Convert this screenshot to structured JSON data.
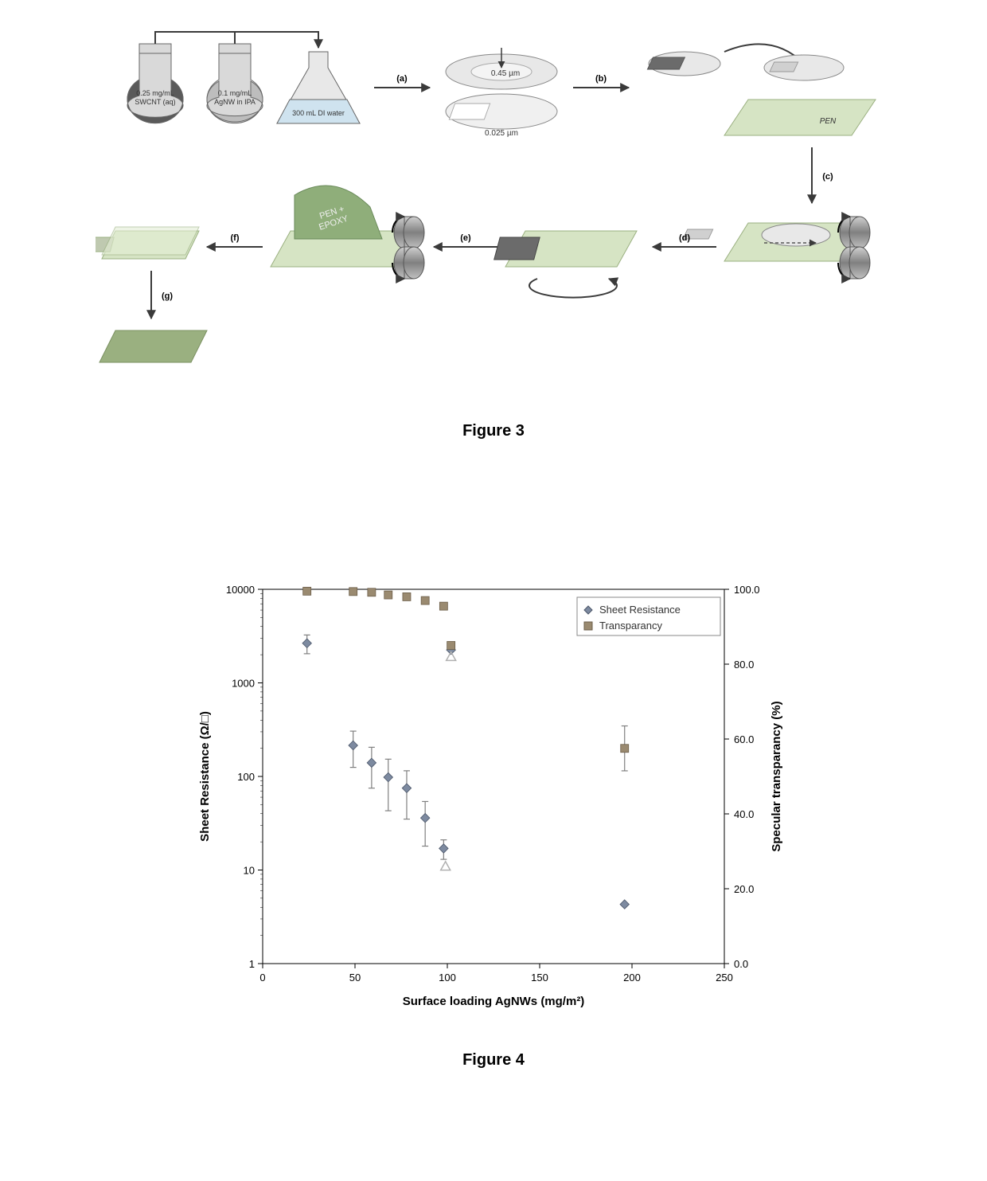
{
  "figure3": {
    "caption": "Figure 3",
    "flasks": {
      "swcnt": {
        "line1": "0.25 mg/mL",
        "line2": "SWCNT (aq)"
      },
      "agnw": {
        "line1": "0.1 mg/mL",
        "line2": "AgNW in IPA"
      },
      "water": "300 mL DI water"
    },
    "filter": {
      "top": "0.45 µm",
      "bottom": "0.025 µm"
    },
    "substrate_label": "PEN",
    "roll_label": "PEN + EPOXY",
    "steps": [
      "(a)",
      "(b)",
      "(c)",
      "(d)",
      "(e)",
      "(f)",
      "(g)"
    ],
    "colors": {
      "flask_body": "#d9d9d9",
      "flask_stroke": "#666666",
      "swcnt_fill": "#5a5a5a",
      "agnw_fill": "#bdbdbd",
      "water_fill": "#cfe3ef",
      "ellipse_fill": "#e8e8e8",
      "ellipse_stroke": "#888888",
      "substrate": "#d6e4c4",
      "film": "#6b6b6b",
      "roller": "#a8a8a8",
      "arrow": "#3a3a3a"
    }
  },
  "figure4": {
    "caption": "Figure 4",
    "type": "scatter",
    "x_label": "Surface loading AgNWs (mg/m²)",
    "y1_label": "Sheet Resistance (Ω/□)",
    "y2_label": "Specular transparancy (%)",
    "xlim": [
      0,
      250
    ],
    "xtick_step": 50,
    "y1_scale": "log",
    "y1_lim": [
      1,
      10000
    ],
    "y1_ticks": [
      1,
      10,
      100,
      1000,
      10000
    ],
    "y2_lim": [
      0,
      100
    ],
    "y2_tick_step": 20,
    "legend": {
      "series1": "Sheet Resistance",
      "series2": "Transparancy",
      "position": "top-right-inside"
    },
    "series_resistance": {
      "marker": "diamond",
      "color": "#7d8aa0",
      "points": [
        {
          "x": 24,
          "y": 2650,
          "err": 600
        },
        {
          "x": 49,
          "y": 215,
          "err": 90
        },
        {
          "x": 59,
          "y": 140,
          "err": 65
        },
        {
          "x": 68,
          "y": 98,
          "err": 55
        },
        {
          "x": 78,
          "y": 75,
          "err": 40
        },
        {
          "x": 88,
          "y": 36,
          "err": 18
        },
        {
          "x": 98,
          "y": 17,
          "err": 4
        },
        {
          "x": 102,
          "y": 2250,
          "err": 0
        },
        {
          "x": 196,
          "y": 4.3,
          "err": 0
        }
      ]
    },
    "series_transparency": {
      "marker": "square",
      "color": "#9a8a70",
      "points": [
        {
          "x": 24,
          "y": 99.5
        },
        {
          "x": 49,
          "y": 99.4
        },
        {
          "x": 59,
          "y": 99.2
        },
        {
          "x": 68,
          "y": 98.5
        },
        {
          "x": 78,
          "y": 98.0
        },
        {
          "x": 88,
          "y": 97.0
        },
        {
          "x": 98,
          "y": 95.5
        },
        {
          "x": 102,
          "y": 85.0
        },
        {
          "x": 196,
          "y": 57.5,
          "err": 6
        }
      ]
    },
    "series_extra_triangles": {
      "marker": "triangle-open",
      "color": "#b0b0b0",
      "points": [
        {
          "x": 102,
          "y": 82
        },
        {
          "x": 99,
          "y": 26
        }
      ]
    },
    "colors": {
      "background": "#ffffff",
      "axis": "#000000",
      "grid": "#d0d0d0",
      "error_bar": "#808080"
    },
    "marker_size": 8,
    "axis_label_fontsize": 14,
    "tick_fontsize": 13
  }
}
